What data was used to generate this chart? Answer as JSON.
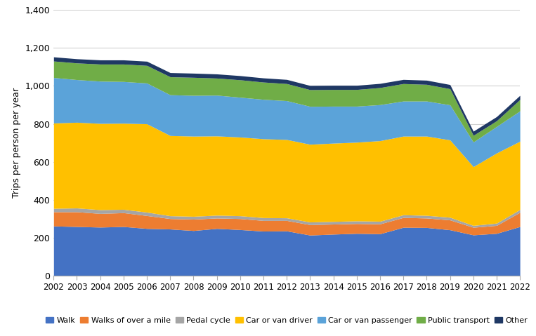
{
  "years": [
    2002,
    2003,
    2004,
    2005,
    2006,
    2007,
    2008,
    2009,
    2010,
    2011,
    2012,
    2013,
    2014,
    2015,
    2016,
    2017,
    2018,
    2019,
    2020,
    2021,
    2022
  ],
  "Walk": [
    261,
    258,
    255,
    258,
    248,
    245,
    237,
    248,
    242,
    234,
    235,
    213,
    218,
    222,
    220,
    254,
    253,
    241,
    214,
    222,
    258
  ],
  "Walks_over_mile": [
    75,
    78,
    72,
    73,
    68,
    55,
    60,
    55,
    58,
    56,
    55,
    55,
    53,
    52,
    52,
    52,
    50,
    52,
    40,
    42,
    75
  ],
  "Pedal_cycle": [
    18,
    20,
    20,
    18,
    18,
    15,
    15,
    15,
    15,
    15,
    14,
    14,
    14,
    14,
    14,
    14,
    14,
    14,
    10,
    12,
    15
  ],
  "Car_driver": [
    450,
    452,
    455,
    454,
    466,
    423,
    423,
    418,
    415,
    416,
    413,
    410,
    413,
    415,
    425,
    415,
    418,
    408,
    310,
    370,
    360
  ],
  "Car_passenger": [
    240,
    225,
    223,
    220,
    215,
    215,
    215,
    215,
    210,
    208,
    205,
    200,
    195,
    190,
    190,
    185,
    185,
    185,
    130,
    140,
    160
  ],
  "Public_transport": [
    87,
    88,
    90,
    92,
    93,
    95,
    95,
    90,
    92,
    91,
    90,
    88,
    88,
    88,
    90,
    92,
    88,
    85,
    35,
    30,
    60
  ],
  "Other": [
    22,
    22,
    22,
    22,
    22,
    22,
    22,
    22,
    22,
    22,
    22,
    22,
    22,
    22,
    22,
    22,
    22,
    22,
    22,
    22,
    22
  ],
  "colors": {
    "Walk": "#4472C4",
    "Walks_over_mile": "#ED7D31",
    "Pedal_cycle": "#A5A5A5",
    "Car_driver": "#FFC000",
    "Car_passenger": "#5BA3D9",
    "Public_transport": "#70AD47",
    "Other": "#1F3864"
  },
  "labels": {
    "Walk": "Walk",
    "Walks_over_mile": "Walks of over a mile",
    "Pedal_cycle": "Pedal cycle",
    "Car_driver": "Car or van driver",
    "Car_passenger": "Car or van passenger",
    "Public_transport": "Public transport",
    "Other": "Other"
  },
  "ylabel": "Trips per person per year",
  "ylim": [
    0,
    1400
  ],
  "yticks": [
    0,
    200,
    400,
    600,
    800,
    1000,
    1200,
    1400
  ]
}
